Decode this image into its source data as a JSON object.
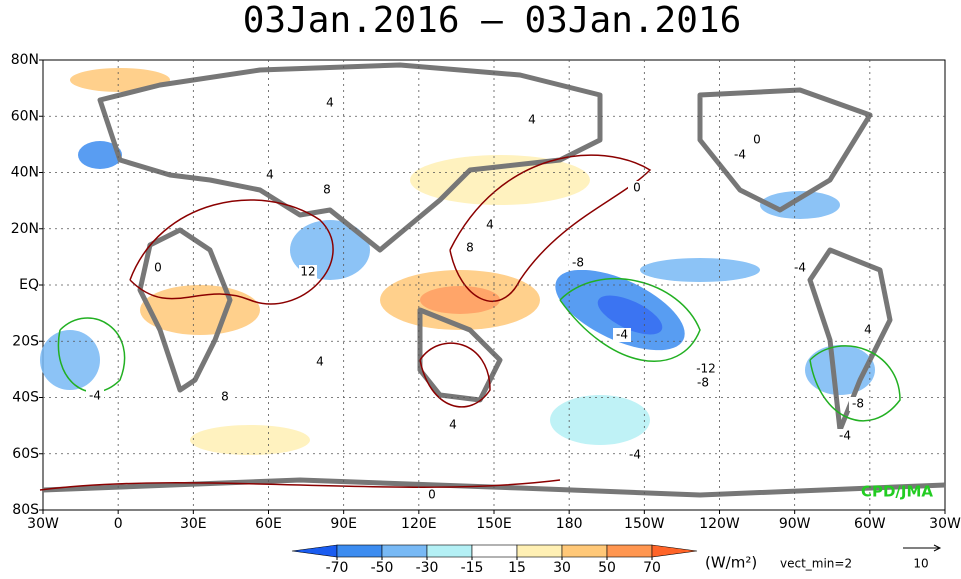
{
  "title": "03Jan.2016 – 03Jan.2016",
  "lat_labels": [
    "80N",
    "60N",
    "40N",
    "20N",
    "EQ",
    "20S",
    "40S",
    "60S",
    "80S"
  ],
  "lon_labels": [
    "30W",
    "0",
    "30E",
    "60E",
    "90E",
    "120E",
    "150E",
    "180",
    "150W",
    "120W",
    "90W",
    "60W",
    "30W"
  ],
  "contour_labels": [
    "4",
    "4",
    "0",
    "-4",
    "0",
    "8",
    "8",
    "12",
    "0",
    "-8",
    "-4",
    "4",
    "-4",
    "-12",
    "-8",
    "-4",
    "-8",
    "-4",
    "4",
    "8",
    "4",
    "-4",
    "0",
    "4",
    "4"
  ],
  "credit": "CPD/JMA",
  "colorbar": {
    "ticks": [
      -70,
      -50,
      -30,
      -15,
      15,
      30,
      50,
      70
    ],
    "colors": [
      "#1a5cf0",
      "#3c8cf0",
      "#78b9f5",
      "#b4f0f5",
      "#ffffff",
      "#fff0b4",
      "#ffc878",
      "#ff9650",
      "#ff6428"
    ],
    "unit": "(W/m²)"
  },
  "vector_note": "vect_min=2",
  "reference_vector": "10"
}
